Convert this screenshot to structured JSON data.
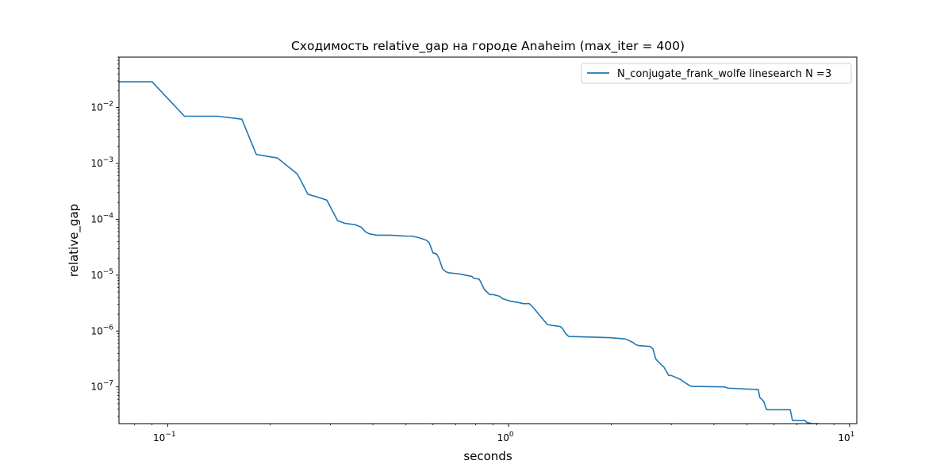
{
  "chart_data": {
    "type": "line",
    "title": "Сходимость relative_gap на городе Anaheim  (max_iter = 400)",
    "xlabel": "seconds",
    "ylabel": "relative_gap",
    "xscale": "log",
    "yscale": "log",
    "xlim": [
      0.072,
      10.5
    ],
    "ylim": [
      2.2e-08,
      0.08
    ],
    "x_ticks": [
      {
        "value": 0.1,
        "base": "10",
        "exp": "−1"
      },
      {
        "value": 1,
        "base": "10",
        "exp": "0"
      },
      {
        "value": 10,
        "base": "10",
        "exp": "1"
      }
    ],
    "y_ticks": [
      {
        "value": 1e-07,
        "base": "10",
        "exp": "−7"
      },
      {
        "value": 1e-06,
        "base": "10",
        "exp": "−6"
      },
      {
        "value": 1e-05,
        "base": "10",
        "exp": "−5"
      },
      {
        "value": 0.0001,
        "base": "10",
        "exp": "−4"
      },
      {
        "value": 0.001,
        "base": "10",
        "exp": "−3"
      },
      {
        "value": 0.01,
        "base": "10",
        "exp": "−2"
      }
    ],
    "legend_position": "top-right",
    "grid": false,
    "series": [
      {
        "name": "N_conjugate_frank_wolfe linesearch N =3",
        "color": "#1f77b4",
        "x": [
          0.072,
          0.09,
          0.112,
          0.14,
          0.165,
          0.182,
          0.21,
          0.24,
          0.258,
          0.275,
          0.293,
          0.315,
          0.33,
          0.355,
          0.37,
          0.38,
          0.39,
          0.41,
          0.45,
          0.5,
          0.52,
          0.545,
          0.575,
          0.585,
          0.6,
          0.615,
          0.625,
          0.64,
          0.655,
          0.67,
          0.69,
          0.72,
          0.73,
          0.78,
          0.79,
          0.82,
          0.85,
          0.88,
          0.9,
          0.94,
          0.96,
          1.0,
          1.02,
          1.08,
          1.1,
          1.15,
          1.19,
          1.21,
          1.3,
          1.42,
          1.44,
          1.47,
          1.5,
          2.0,
          2.2,
          2.25,
          2.32,
          2.35,
          2.4,
          2.6,
          2.65,
          2.7,
          2.72,
          2.82,
          2.85,
          2.95,
          3.0,
          3.2,
          3.25,
          3.4,
          3.45,
          4.3,
          4.4,
          4.9,
          5.4,
          5.45,
          5.6,
          5.7,
          5.75,
          6.7,
          6.8,
          7.4,
          7.5,
          7.8,
          8.1
        ],
        "y": [
          0.029,
          0.029,
          0.007,
          0.007,
          0.0062,
          0.00145,
          0.00125,
          0.00065,
          0.00028,
          0.00025,
          0.00022,
          9.5e-05,
          8.5e-05,
          8e-05,
          7.2e-05,
          6e-05,
          5.5e-05,
          5.2e-05,
          5.2e-05,
          5e-05,
          5e-05,
          4.7e-05,
          4.2e-05,
          3.8e-05,
          2.5e-05,
          2.4e-05,
          2e-05,
          1.3e-05,
          1.15e-05,
          1.1e-05,
          1.08e-05,
          1.05e-05,
          1.03e-05,
          9.5e-06,
          8.8e-06,
          8.5e-06,
          5.5e-06,
          4.5e-06,
          4.5e-06,
          4.2e-06,
          3.8e-06,
          3.5e-06,
          3.4e-06,
          3.2e-06,
          3.1e-06,
          3.1e-06,
          2.5e-06,
          2.2e-06,
          1.3e-06,
          1.2e-06,
          1.1e-06,
          9e-07,
          8e-07,
          7.6e-07,
          7.2e-07,
          6.8e-07,
          6.2e-07,
          5.8e-07,
          5.5e-07,
          5.3e-07,
          4.8e-07,
          3.2e-07,
          3e-07,
          2.4e-07,
          2.3e-07,
          1.6e-07,
          1.6e-07,
          1.35e-07,
          1.25e-07,
          1.05e-07,
          1.02e-07,
          1e-07,
          9.5e-08,
          9.2e-08,
          9e-08,
          6.5e-08,
          5.5e-08,
          4e-08,
          3.9e-08,
          3.9e-08,
          2.5e-08,
          2.5e-08,
          2.3e-08,
          2.2e-08,
          2.2e-08
        ]
      }
    ]
  }
}
